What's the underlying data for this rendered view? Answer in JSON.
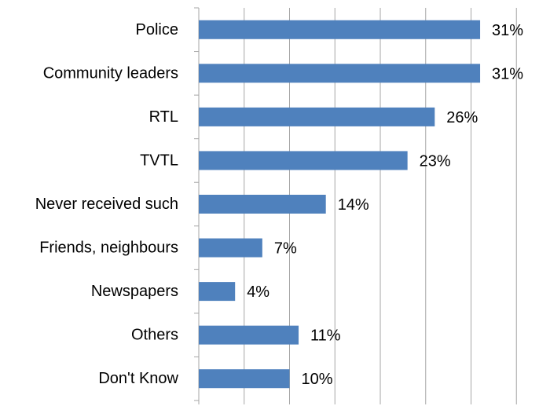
{
  "chart_data": {
    "type": "bar",
    "orientation": "horizontal",
    "categories": [
      "Police",
      "Community leaders",
      "RTL",
      "TVTL",
      "Never received such",
      "Friends, neighbours",
      "Newspapers",
      "Others",
      "Don't Know"
    ],
    "values": [
      31,
      31,
      26,
      23,
      14,
      7,
      4,
      11,
      10
    ],
    "data_labels": [
      "31%",
      "31%",
      "26%",
      "23%",
      "14%",
      "7%",
      "4%",
      "11%",
      "10%"
    ],
    "xlim": [
      0,
      35
    ],
    "title": "",
    "xlabel": "",
    "ylabel": "",
    "grid": true,
    "legend": "none",
    "bar_color": "#4f81bd",
    "grid_color": "#a6a6a6"
  }
}
